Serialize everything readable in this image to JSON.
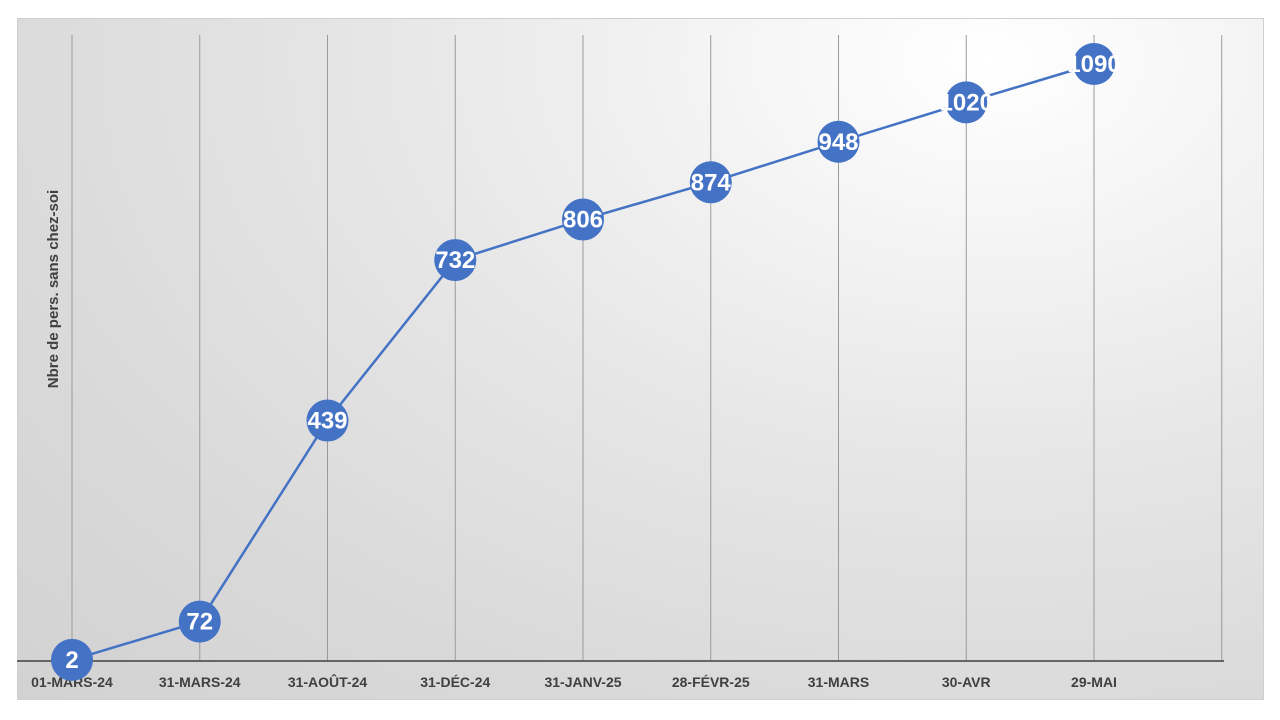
{
  "chart_data": {
    "type": "line",
    "title": "",
    "xlabel": "",
    "ylabel": "Nbre de pers. sans chez-soi",
    "categories": [
      "01-MARS-24",
      "31-MARS-24",
      "31-AOÛT-24",
      "31-DÉC-24",
      "31-JANV-25",
      "28-FÉVR-25",
      "31-MARS",
      "30-AVR",
      "29-MAI"
    ],
    "series": [
      {
        "values": [
          2,
          72,
          439,
          732,
          806,
          874,
          948,
          1020,
          1090
        ]
      }
    ],
    "ylim": [
      0,
      1090
    ],
    "grid": "vertical",
    "legend": "none",
    "colors": {
      "line": "#4472C4",
      "marker": "#4472C4",
      "label": "#FFFFFF",
      "grid": "#9a9a9a",
      "axis": "#404040"
    }
  }
}
